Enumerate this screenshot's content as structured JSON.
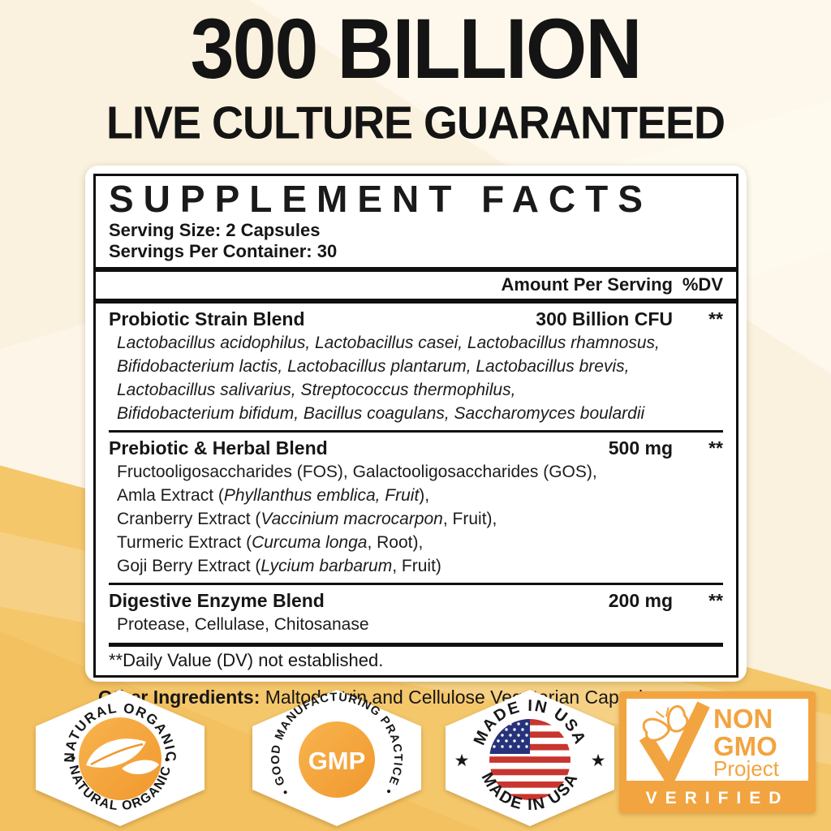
{
  "header": {
    "title": "300 BILLION",
    "subtitle": "LIVE CULTURE GUARANTEED"
  },
  "panel": {
    "title": "SUPPLEMENT FACTS",
    "serving_size": "Serving Size: 2 Capsules",
    "servings_per_container": "Servings Per Container: 30",
    "columns": {
      "amount": "Amount Per Serving",
      "dv": "%DV"
    },
    "sections": [
      {
        "name": "Probiotic Strain Blend",
        "amount": "300 Billion CFU",
        "dv": "**",
        "lines": [
          [
            {
              "t": "Lactobacillus acidophilus, Lactobacillus casei, Lactobacillus rhamnosus,",
              "i": true
            }
          ],
          [
            {
              "t": "Bifidobacterium lactis, Lactobacillus plantarum, Lactobacillus brevis,",
              "i": true
            }
          ],
          [
            {
              "t": "Lactobacillus salivarius, Streptococcus thermophilus,",
              "i": true
            }
          ],
          [
            {
              "t": "Bifidobacterium bifidum, Bacillus coagulans, Saccharomyces boulardii",
              "i": true
            }
          ]
        ]
      },
      {
        "name": "Prebiotic & Herbal Blend",
        "amount": "500 mg",
        "dv": "**",
        "lines": [
          [
            {
              "t": "Fructooligosaccharides (FOS), Galactooligosaccharides (GOS),",
              "i": false
            }
          ],
          [
            {
              "t": "Amla Extract (",
              "i": false
            },
            {
              "t": "Phyllanthus emblica, Fruit",
              "i": true
            },
            {
              "t": "),",
              "i": false
            }
          ],
          [
            {
              "t": "Cranberry Extract (",
              "i": false
            },
            {
              "t": "Vaccinium macrocarpon",
              "i": true
            },
            {
              "t": ", Fruit),",
              "i": false
            }
          ],
          [
            {
              "t": "Turmeric Extract (",
              "i": false
            },
            {
              "t": "Curcuma longa",
              "i": true
            },
            {
              "t": ", Root),",
              "i": false
            }
          ],
          [
            {
              "t": "Goji Berry Extract (",
              "i": false
            },
            {
              "t": "Lycium barbarum",
              "i": true
            },
            {
              "t": ", Fruit)",
              "i": false
            }
          ]
        ]
      },
      {
        "name": "Digestive Enzyme Blend",
        "amount": "200 mg",
        "dv": "**",
        "lines": [
          [
            {
              "t": "Protease, Cellulase, Chitosanase",
              "i": false
            }
          ]
        ]
      }
    ],
    "footnote": "**Daily Value (DV) not established.",
    "other_ingredients_label": "Other Ingredients:",
    "other_ingredients_text": " Maltodextrin and Cellulose Vegetarian Capsule."
  },
  "badges": {
    "natural_organic": {
      "arc_top": "NATURAL ORGANIC",
      "arc_bottom": "• NATURAL ORGANIC •"
    },
    "gmp": {
      "arc": "• GOOD MANUFACTURING PRACTICE •",
      "center": "GMP"
    },
    "usa": {
      "arc_top": "MADE IN USA",
      "arc_bottom": "MADE IN USA",
      "star": "★"
    },
    "non_gmo": {
      "line1": "NON",
      "line2": "GMO",
      "line3": "Project",
      "footer": "VERIFIED"
    }
  },
  "colors": {
    "cream_background": "#FAF1DE",
    "golden_background": "#F5C76B",
    "badge_orange": "#F2A440",
    "seal_orange_light": "#F9B44E",
    "seal_orange_dark": "#F0982E",
    "text_black": "#141414",
    "flag_red": "#C8362F",
    "flag_blue": "#26337A"
  }
}
